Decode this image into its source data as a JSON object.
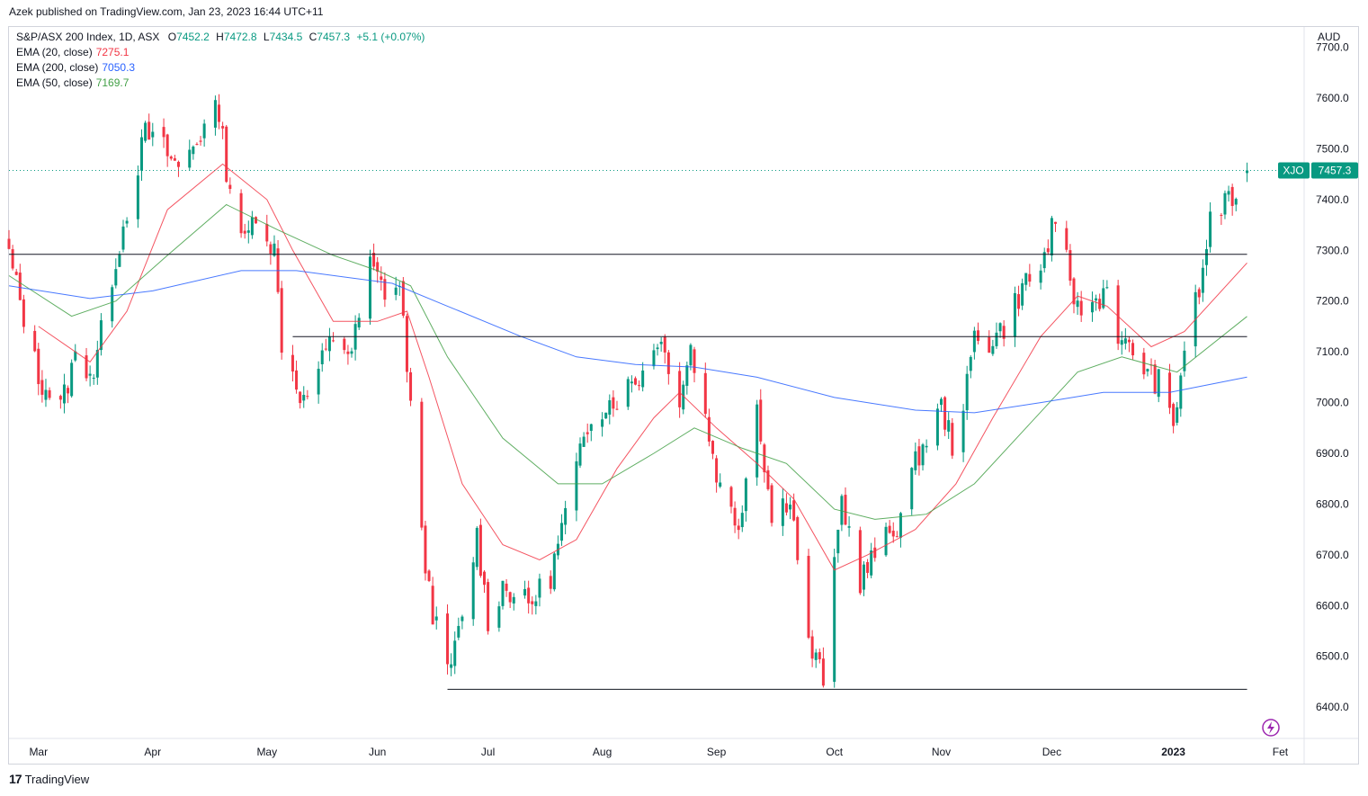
{
  "publisher_line": "Azek published on TradingView.com, Jan 23, 2023 16:44 UTC+11",
  "footer": {
    "logo_mark": "17",
    "logo_text": "TradingView"
  },
  "legend": {
    "symbol": "S&P/ASX 200 Index, 1D, ASX",
    "open_label": "O",
    "open": "7452.2",
    "high_label": "H",
    "high": "7472.8",
    "low_label": "L",
    "low": "7434.5",
    "close_label": "C",
    "close": "7457.3",
    "change": "+5.1 (+0.07%)",
    "indicators": [
      {
        "label": "EMA (20, close)",
        "value": "7275.1",
        "color": "#f23645"
      },
      {
        "label": "EMA (200, close)",
        "value": "7050.3",
        "color": "#2962ff"
      },
      {
        "label": "EMA (50, close)",
        "value": "7169.7",
        "color": "#43a047"
      }
    ]
  },
  "price_tag": {
    "symbol": "XJO",
    "value": "7457.3",
    "color": "#089981"
  },
  "chart_data": {
    "type": "candlestick",
    "currency": "AUD",
    "ylim": [
      6340,
      7740
    ],
    "y_ticks": [
      6400,
      6500,
      6600,
      6700,
      6800,
      6900,
      7000,
      7100,
      7200,
      7300,
      7400,
      7500,
      7600,
      7700
    ],
    "x_ticks": [
      {
        "label": "Mar",
        "date": "2022-03-01"
      },
      {
        "label": "Apr",
        "date": "2022-04-01"
      },
      {
        "label": "May",
        "date": "2022-05-02"
      },
      {
        "label": "Jun",
        "date": "2022-06-01"
      },
      {
        "label": "Jul",
        "date": "2022-07-01"
      },
      {
        "label": "Aug",
        "date": "2022-08-01"
      },
      {
        "label": "Sep",
        "date": "2022-09-01"
      },
      {
        "label": "Oct",
        "date": "2022-10-03"
      },
      {
        "label": "Nov",
        "date": "2022-11-01"
      },
      {
        "label": "Dec",
        "date": "2022-12-01"
      },
      {
        "label": "2023",
        "date": "2023-01-03",
        "bold": true
      },
      {
        "label": "Fet",
        "date": "2023-02-01"
      }
    ],
    "x_range": [
      "2022-02-21",
      "2023-02-07"
    ],
    "up_color": "#089981",
    "down_color": "#f23645",
    "anchors": [
      [
        "2022-02-21",
        7290
      ],
      [
        "2022-03-01",
        7050
      ],
      [
        "2022-03-07",
        6990
      ],
      [
        "2022-03-11",
        7090
      ],
      [
        "2022-03-16",
        7060
      ],
      [
        "2022-03-21",
        7250
      ],
      [
        "2022-03-25",
        7380
      ],
      [
        "2022-03-30",
        7530
      ],
      [
        "2022-04-04",
        7500
      ],
      [
        "2022-04-08",
        7460
      ],
      [
        "2022-04-12",
        7510
      ],
      [
        "2022-04-19",
        7580
      ],
      [
        "2022-04-21",
        7460
      ],
      [
        "2022-04-26",
        7310
      ],
      [
        "2022-04-29",
        7380
      ],
      [
        "2022-05-04",
        7300
      ],
      [
        "2022-05-06",
        7120
      ],
      [
        "2022-05-12",
        7000
      ],
      [
        "2022-05-17",
        7080
      ],
      [
        "2022-05-20",
        7130
      ],
      [
        "2022-05-25",
        7100
      ],
      [
        "2022-05-30",
        7270
      ],
      [
        "2022-06-03",
        7220
      ],
      [
        "2022-06-07",
        7230
      ],
      [
        "2022-06-09",
        7080
      ],
      [
        "2022-06-13",
        6730
      ],
      [
        "2022-06-16",
        6590
      ],
      [
        "2022-06-20",
        6460
      ],
      [
        "2022-06-24",
        6570
      ],
      [
        "2022-06-28",
        6740
      ],
      [
        "2022-07-01",
        6570
      ],
      [
        "2022-07-05",
        6640
      ],
      [
        "2022-07-12",
        6600
      ],
      [
        "2022-07-18",
        6660
      ],
      [
        "2022-07-22",
        6780
      ],
      [
        "2022-07-29",
        6980
      ],
      [
        "2022-08-05",
        7010
      ],
      [
        "2022-08-12",
        7060
      ],
      [
        "2022-08-16",
        7130
      ],
      [
        "2022-08-19",
        7080
      ],
      [
        "2022-08-22",
        7010
      ],
      [
        "2022-08-25",
        7110
      ],
      [
        "2022-08-29",
        6970
      ],
      [
        "2022-09-02",
        6830
      ],
      [
        "2022-09-07",
        6760
      ],
      [
        "2022-09-12",
        7000
      ],
      [
        "2022-09-16",
        6770
      ],
      [
        "2022-09-21",
        6820
      ],
      [
        "2022-09-26",
        6520
      ],
      [
        "2022-09-30",
        6460
      ],
      [
        "2022-10-05",
        6810
      ],
      [
        "2022-10-10",
        6650
      ],
      [
        "2022-10-14",
        6700
      ],
      [
        "2022-10-20",
        6760
      ],
      [
        "2022-10-26",
        6900
      ],
      [
        "2022-11-01",
        6990
      ],
      [
        "2022-11-04",
        6920
      ],
      [
        "2022-11-08",
        7030
      ],
      [
        "2022-11-10",
        7130
      ],
      [
        "2022-11-14",
        7120
      ],
      [
        "2022-11-18",
        7150
      ],
      [
        "2022-11-24",
        7240
      ],
      [
        "2022-11-28",
        7260
      ],
      [
        "2022-12-01",
        7340
      ],
      [
        "2022-12-05",
        7280
      ],
      [
        "2022-12-08",
        7180
      ],
      [
        "2022-12-13",
        7200
      ],
      [
        "2022-12-16",
        7230
      ],
      [
        "2022-12-20",
        7110
      ],
      [
        "2022-12-23",
        7100
      ],
      [
        "2022-12-28",
        7050
      ],
      [
        "2022-12-30",
        7040
      ],
      [
        "2023-01-03",
        6950
      ],
      [
        "2023-01-06",
        7110
      ],
      [
        "2023-01-11",
        7250
      ],
      [
        "2023-01-13",
        7370
      ],
      [
        "2023-01-18",
        7390
      ],
      [
        "2023-01-23",
        7457.3
      ]
    ],
    "last_candle": {
      "open": 7452.2,
      "high": 7472.8,
      "low": 7434.5,
      "close": 7457.3
    },
    "horizontal_lines": [
      {
        "price": 7292,
        "from": "2022-02-21",
        "to": "2023-01-23"
      },
      {
        "price": 7130,
        "from": "2022-05-09",
        "to": "2023-01-23"
      },
      {
        "price": 6435,
        "from": "2022-06-20",
        "to": "2023-01-23"
      }
    ],
    "ema": [
      {
        "name": "EMA (20, close)",
        "color": "#f23645",
        "points": [
          [
            "2022-03-01",
            7150
          ],
          [
            "2022-03-15",
            7080
          ],
          [
            "2022-03-25",
            7180
          ],
          [
            "2022-04-05",
            7380
          ],
          [
            "2022-04-20",
            7470
          ],
          [
            "2022-05-02",
            7400
          ],
          [
            "2022-05-09",
            7300
          ],
          [
            "2022-05-20",
            7160
          ],
          [
            "2022-06-01",
            7160
          ],
          [
            "2022-06-09",
            7180
          ],
          [
            "2022-06-15",
            7050
          ],
          [
            "2022-06-24",
            6840
          ],
          [
            "2022-07-05",
            6720
          ],
          [
            "2022-07-15",
            6690
          ],
          [
            "2022-07-25",
            6730
          ],
          [
            "2022-08-05",
            6870
          ],
          [
            "2022-08-15",
            6970
          ],
          [
            "2022-08-22",
            7020
          ],
          [
            "2022-09-01",
            6950
          ],
          [
            "2022-09-12",
            6880
          ],
          [
            "2022-09-22",
            6810
          ],
          [
            "2022-10-03",
            6670
          ],
          [
            "2022-10-12",
            6700
          ],
          [
            "2022-10-25",
            6750
          ],
          [
            "2022-11-05",
            6840
          ],
          [
            "2022-11-15",
            6970
          ],
          [
            "2022-11-28",
            7130
          ],
          [
            "2022-12-08",
            7210
          ],
          [
            "2022-12-16",
            7190
          ],
          [
            "2022-12-28",
            7110
          ],
          [
            "2023-01-06",
            7140
          ],
          [
            "2023-01-23",
            7275.1
          ]
        ]
      },
      {
        "name": "EMA (50, close)",
        "color": "#43a047",
        "points": [
          [
            "2022-02-21",
            7250
          ],
          [
            "2022-03-10",
            7170
          ],
          [
            "2022-03-22",
            7200
          ],
          [
            "2022-04-05",
            7290
          ],
          [
            "2022-04-21",
            7390
          ],
          [
            "2022-05-05",
            7340
          ],
          [
            "2022-05-20",
            7290
          ],
          [
            "2022-06-01",
            7260
          ],
          [
            "2022-06-10",
            7230
          ],
          [
            "2022-06-20",
            7090
          ],
          [
            "2022-07-05",
            6930
          ],
          [
            "2022-07-20",
            6840
          ],
          [
            "2022-08-01",
            6840
          ],
          [
            "2022-08-15",
            6900
          ],
          [
            "2022-08-26",
            6950
          ],
          [
            "2022-09-08",
            6910
          ],
          [
            "2022-09-20",
            6880
          ],
          [
            "2022-10-03",
            6790
          ],
          [
            "2022-10-14",
            6770
          ],
          [
            "2022-10-28",
            6780
          ],
          [
            "2022-11-10",
            6840
          ],
          [
            "2022-11-24",
            6950
          ],
          [
            "2022-12-08",
            7060
          ],
          [
            "2022-12-20",
            7090
          ],
          [
            "2023-01-04",
            7060
          ],
          [
            "2023-01-23",
            7169.7
          ]
        ]
      },
      {
        "name": "EMA (200, close)",
        "color": "#2962ff",
        "points": [
          [
            "2022-02-21",
            7230
          ],
          [
            "2022-03-15",
            7205
          ],
          [
            "2022-04-01",
            7220
          ],
          [
            "2022-04-25",
            7260
          ],
          [
            "2022-05-10",
            7260
          ],
          [
            "2022-06-05",
            7235
          ],
          [
            "2022-06-20",
            7190
          ],
          [
            "2022-07-10",
            7130
          ],
          [
            "2022-07-25",
            7090
          ],
          [
            "2022-08-10",
            7075
          ],
          [
            "2022-08-26",
            7070
          ],
          [
            "2022-09-12",
            7050
          ],
          [
            "2022-10-03",
            7010
          ],
          [
            "2022-10-25",
            6985
          ],
          [
            "2022-11-10",
            6980
          ],
          [
            "2022-11-28",
            7000
          ],
          [
            "2022-12-15",
            7020
          ],
          [
            "2023-01-02",
            7020
          ],
          [
            "2023-01-23",
            7050.3
          ]
        ]
      }
    ]
  }
}
